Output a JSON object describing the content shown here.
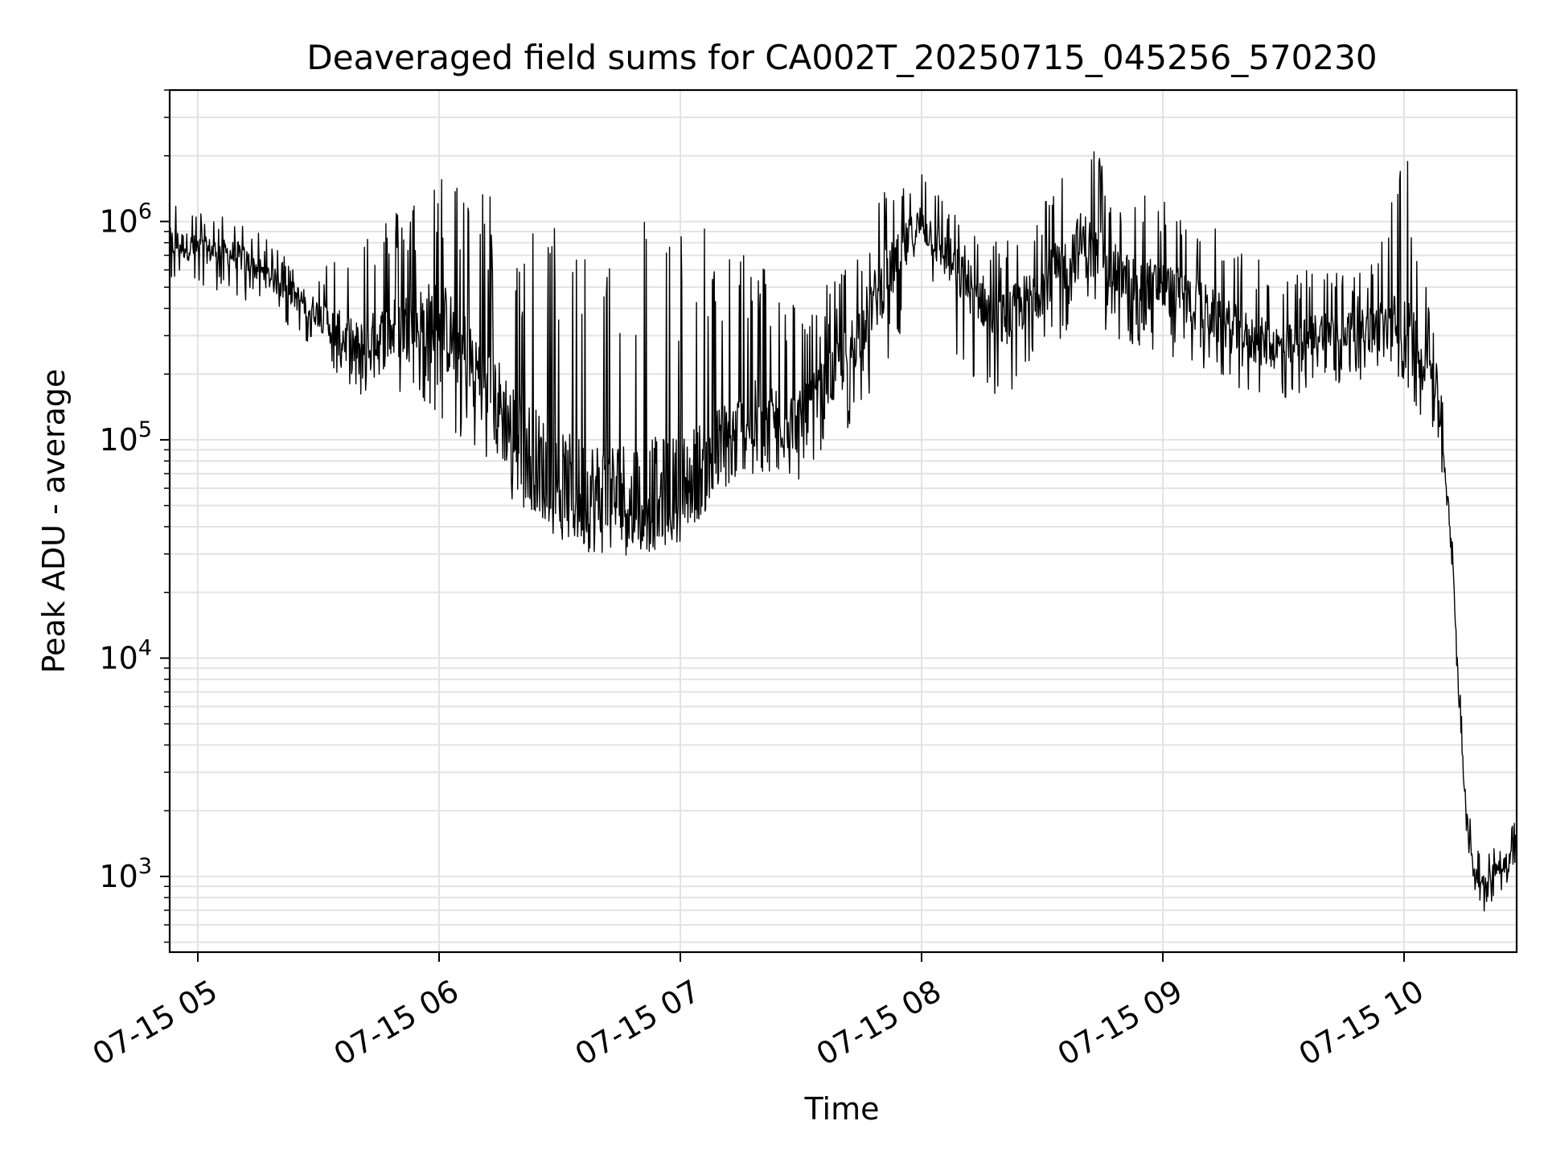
{
  "chart_data": {
    "type": "line",
    "title": "Deaveraged field sums for CA002T_20250715_045256_570230",
    "xlabel": "Time",
    "ylabel": "Peak ADU - average",
    "y_scale": "log",
    "ylim": [
      450,
      4000000
    ],
    "xlim": [
      "2025-07-15 04:53",
      "2025-07-15 10:28"
    ],
    "grid": true,
    "legend": "none",
    "line_color": "#000000",
    "x_ticks": [
      "07-15 05",
      "07-15 06",
      "07-15 07",
      "07-15 08",
      "07-15 09",
      "07-15 10"
    ],
    "x_tick_times": [
      "2025-07-15 05:00",
      "2025-07-15 06:00",
      "2025-07-15 07:00",
      "2025-07-15 08:00",
      "2025-07-15 09:00",
      "2025-07-15 10:00"
    ],
    "y_ticks": [
      {
        "base": "10",
        "exp": "3",
        "value": 1000
      },
      {
        "base": "10",
        "exp": "4",
        "value": 10000
      },
      {
        "base": "10",
        "exp": "5",
        "value": 100000
      },
      {
        "base": "10",
        "exp": "6",
        "value": 1000000
      }
    ],
    "series": [
      {
        "x": [
          "2025-07-15 04:53",
          "2025-07-15 05:00",
          "2025-07-15 05:10",
          "2025-07-15 05:20",
          "2025-07-15 05:30",
          "2025-07-15 05:40",
          "2025-07-15 05:50",
          "2025-07-15 06:00",
          "2025-07-15 06:10",
          "2025-07-15 06:20",
          "2025-07-15 06:30",
          "2025-07-15 06:40",
          "2025-07-15 06:50",
          "2025-07-15 07:00",
          "2025-07-15 07:10",
          "2025-07-15 07:20",
          "2025-07-15 07:30",
          "2025-07-15 07:40",
          "2025-07-15 07:50",
          "2025-07-15 08:00",
          "2025-07-15 08:10",
          "2025-07-15 08:20",
          "2025-07-15 08:30",
          "2025-07-15 08:40",
          "2025-07-15 08:50",
          "2025-07-15 09:00",
          "2025-07-15 09:10",
          "2025-07-15 09:20",
          "2025-07-15 09:30",
          "2025-07-15 09:40",
          "2025-07-15 09:50",
          "2025-07-15 10:00",
          "2025-07-15 10:05",
          "2025-07-15 10:08",
          "2025-07-15 10:10",
          "2025-07-15 10:12",
          "2025-07-15 10:14",
          "2025-07-15 10:16",
          "2025-07-15 10:18",
          "2025-07-15 10:20",
          "2025-07-15 10:22",
          "2025-07-15 10:24",
          "2025-07-15 10:26",
          "2025-07-15 10:28"
        ],
        "y_median": [
          800000,
          750000,
          700000,
          520000,
          380000,
          250000,
          330000,
          350000,
          200000,
          100000,
          60000,
          55000,
          55000,
          60000,
          90000,
          130000,
          120000,
          220000,
          500000,
          1000000,
          550000,
          350000,
          500000,
          800000,
          550000,
          500000,
          400000,
          300000,
          260000,
          320000,
          320000,
          320000,
          250000,
          180000,
          80000,
          30000,
          5000,
          1500,
          1000,
          950,
          1050,
          1100,
          1200,
          1500
        ],
        "y_low": [
          550000,
          500000,
          450000,
          350000,
          250000,
          150000,
          150000,
          120000,
          90000,
          45000,
          35000,
          35000,
          33000,
          40000,
          55000,
          70000,
          60000,
          100000,
          200000,
          500000,
          200000,
          150000,
          250000,
          350000,
          280000,
          250000,
          200000,
          170000,
          150000,
          180000,
          180000,
          180000,
          120000,
          90000,
          60000,
          25000,
          3000,
          1200,
          800,
          650,
          750,
          850,
          950,
          1200
        ],
        "y_high": [
          1400000,
          1100000,
          1050000,
          750000,
          600000,
          1000000,
          1150000,
          1700000,
          1600000,
          950000,
          1000000,
          1200000,
          1200000,
          1000000,
          900000,
          700000,
          400000,
          600000,
          1400000,
          1700000,
          1000000,
          800000,
          1300000,
          2600000,
          1400000,
          1300000,
          1000000,
          800000,
          600000,
          600000,
          600000,
          2400000,
          700000,
          350000,
          140000,
          35000,
          7000,
          2000,
          1400,
          1300,
          1400,
          1500,
          1700,
          1900
        ]
      }
    ]
  }
}
